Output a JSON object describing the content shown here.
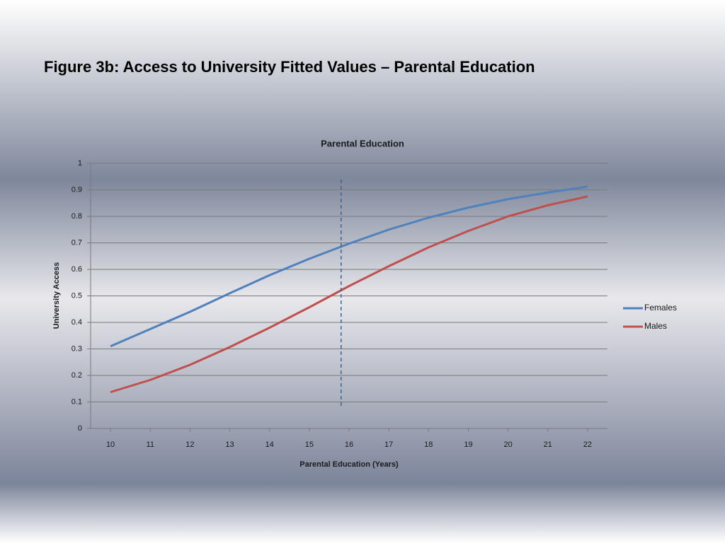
{
  "slide_title": "Figure 3b: Access to University Fitted Values – Parental Education",
  "chart_data": {
    "type": "line",
    "title": "Parental Education",
    "x_label": "Parental Education (Years)",
    "y_label": "University Access",
    "x": [
      10,
      11,
      12,
      13,
      14,
      15,
      16,
      17,
      18,
      19,
      20,
      21,
      22
    ],
    "xlim": [
      9.5,
      22.5
    ],
    "xticks": [
      10,
      11,
      12,
      13,
      14,
      15,
      16,
      17,
      18,
      19,
      20,
      21,
      22
    ],
    "ylim": [
      0,
      1
    ],
    "yticks": [
      0,
      0.1,
      0.2,
      0.3,
      0.4,
      0.5,
      0.6,
      0.7,
      0.8,
      0.9,
      1
    ],
    "grid": true,
    "legend": "right",
    "vline": 15.8,
    "series": [
      {
        "name": "Females",
        "color": "#4f81bd",
        "values": [
          0.31,
          0.375,
          0.44,
          0.51,
          0.578,
          0.64,
          0.697,
          0.75,
          0.795,
          0.833,
          0.865,
          0.89,
          0.912
        ]
      },
      {
        "name": "Males",
        "color": "#c0504d",
        "values": [
          0.137,
          0.183,
          0.24,
          0.307,
          0.38,
          0.457,
          0.537,
          0.612,
          0.683,
          0.745,
          0.8,
          0.842,
          0.875
        ]
      }
    ]
  }
}
